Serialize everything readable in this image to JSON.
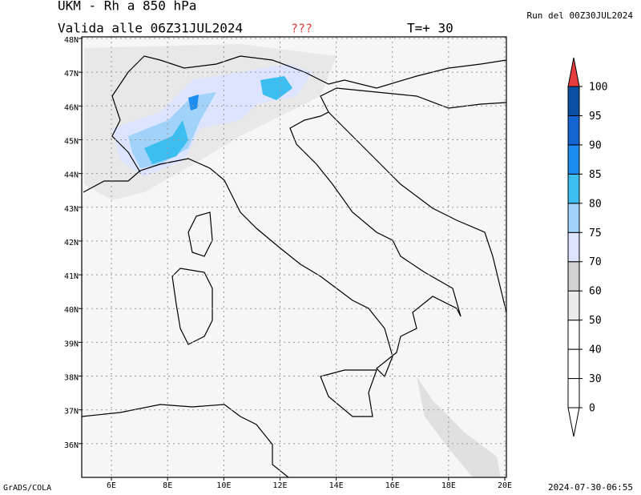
{
  "header": {
    "title": "UKM - Rh a 850 hPa",
    "valid": "Valida alle 06Z31JUL2024",
    "flag": "???",
    "step": "T=+ 30",
    "run": "Run del 00Z30JUL2024"
  },
  "map": {
    "lat_ticks": [
      {
        "value": 48,
        "label": "48N"
      },
      {
        "value": 47,
        "label": "47N"
      },
      {
        "value": 46,
        "label": "46N"
      },
      {
        "value": 45,
        "label": "45N"
      },
      {
        "value": 44,
        "label": "44N"
      },
      {
        "value": 43,
        "label": "43N"
      },
      {
        "value": 42,
        "label": "42N"
      },
      {
        "value": 41,
        "label": "41N"
      },
      {
        "value": 40,
        "label": "40N"
      },
      {
        "value": 39,
        "label": "39N"
      },
      {
        "value": 38,
        "label": "38N"
      },
      {
        "value": 37,
        "label": "37N"
      },
      {
        "value": 36,
        "label": "36N"
      }
    ],
    "lon_ticks": [
      {
        "value": 6,
        "label": "6E"
      },
      {
        "value": 8,
        "label": "8E"
      },
      {
        "value": 10,
        "label": "10E"
      },
      {
        "value": 12,
        "label": "12E"
      },
      {
        "value": 14,
        "label": "14E"
      },
      {
        "value": 16,
        "label": "16E"
      },
      {
        "value": 18,
        "label": "18E"
      },
      {
        "value": 20,
        "label": "20E"
      }
    ]
  },
  "colorbar": {
    "levels": [
      0,
      30,
      40,
      50,
      60,
      70,
      75,
      80,
      85,
      90,
      95,
      100
    ],
    "colors": [
      "#ffffff",
      "#ffffff",
      "#ffffff",
      "#ffffff",
      "#ebebeb",
      "#d2d2d2",
      "#dce4ff",
      "#a0d2fa",
      "#3cbef0",
      "#1e8cf0",
      "#1464d2",
      "#0a50a0",
      "#e63c3c"
    ]
  },
  "footer": {
    "software": "GrADS/COLA",
    "timestamp": "2024-07-30-06:55"
  }
}
